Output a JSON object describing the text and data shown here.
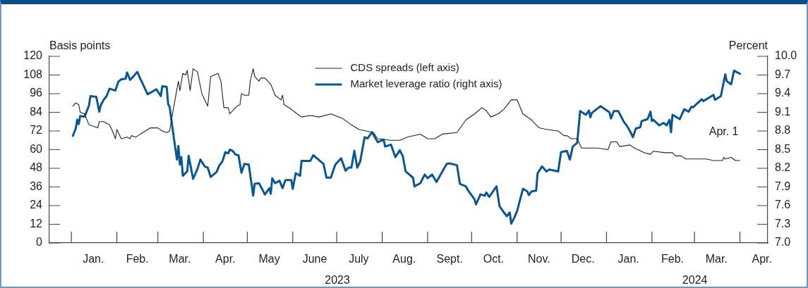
{
  "chart_data": {
    "type": "line",
    "ylabel": "Basis points",
    "y2label": "Percent",
    "xlim": [
      "2022-12-17",
      "2024-04-20"
    ],
    "xticks": [
      {
        "value": "2023-01-01",
        "label": null
      },
      {
        "value": "2023-01-16",
        "label": "Jan."
      },
      {
        "value": "2023-02-01",
        "label": null
      },
      {
        "value": "2023-02-15",
        "label": "Feb."
      },
      {
        "value": "2023-03-01",
        "label": null
      },
      {
        "value": "2023-03-16",
        "label": "Mar."
      },
      {
        "value": "2023-04-01",
        "label": null
      },
      {
        "value": "2023-04-16",
        "label": "Apr."
      },
      {
        "value": "2023-05-01",
        "label": null
      },
      {
        "value": "2023-05-16",
        "label": "May"
      },
      {
        "value": "2023-06-01",
        "label": null
      },
      {
        "value": "2023-06-16",
        "label": "June"
      },
      {
        "value": "2023-07-01",
        "label": null
      },
      {
        "value": "2023-07-16",
        "label": "July"
      },
      {
        "value": "2023-08-01",
        "label": null
      },
      {
        "value": "2023-08-16",
        "label": "Aug."
      },
      {
        "value": "2023-09-01",
        "label": null
      },
      {
        "value": "2023-09-16",
        "label": "Sept."
      },
      {
        "value": "2023-10-01",
        "label": null
      },
      {
        "value": "2023-10-16",
        "label": "Oct."
      },
      {
        "value": "2023-11-01",
        "label": null
      },
      {
        "value": "2023-11-16",
        "label": "Nov."
      },
      {
        "value": "2023-12-01",
        "label": null
      },
      {
        "value": "2023-12-16",
        "label": "Dec."
      },
      {
        "value": "2024-01-01",
        "label": null
      },
      {
        "value": "2024-01-16",
        "label": "Jan."
      },
      {
        "value": "2024-02-01",
        "label": null
      },
      {
        "value": "2024-02-15",
        "label": "Feb."
      },
      {
        "value": "2024-03-01",
        "label": null
      },
      {
        "value": "2024-03-16",
        "label": "Mar."
      },
      {
        "value": "2024-04-01",
        "label": null
      },
      {
        "value": "2024-04-16",
        "label": "Apr."
      }
    ],
    "ylim": [
      0,
      120
    ],
    "yticks": [
      0,
      12,
      24,
      36,
      48,
      60,
      72,
      84,
      96,
      108,
      120
    ],
    "y2lim": [
      7,
      10
    ],
    "y2ticks": [
      {
        "value": 7,
        "label": "7.0"
      },
      7.3,
      7.6,
      7.9,
      8.2,
      8.5,
      8.8,
      9.1,
      9.4,
      9.7,
      {
        "value": 10,
        "label": "10.0"
      }
    ],
    "legend": "top",
    "annotations": [
      "2023",
      "2024",
      "Apr. 1"
    ],
    "series": [
      {
        "name": "CDS spreads (left axis)",
        "color": "#222222",
        "x": [
          "2023-01-02",
          "2023-01-04",
          "2023-01-06",
          "2023-01-07",
          "2023-01-10",
          "2023-01-13",
          "2023-01-19",
          "2023-01-20",
          "2023-01-23",
          "2023-01-27",
          "2023-01-29",
          "2023-01-31",
          "2023-02-01",
          "2023-02-04",
          "2023-02-08",
          "2023-02-10",
          "2023-02-11",
          "2023-02-14",
          "2023-02-17",
          "2023-02-24",
          "2023-03-01",
          "2023-03-04",
          "2023-03-07",
          "2023-03-09",
          "2023-03-11",
          "2023-03-14",
          "2023-03-15",
          "2023-03-16",
          "2023-03-18",
          "2023-03-20",
          "2023-03-21",
          "2023-03-23",
          "2023-03-25",
          "2023-03-28",
          "2023-03-31",
          "2023-04-04",
          "2023-04-06",
          "2023-04-11",
          "2023-04-13",
          "2023-04-15",
          "2023-04-18",
          "2023-04-19",
          "2023-04-24",
          "2023-04-26",
          "2023-04-27",
          "2023-04-29",
          "2023-05-02",
          "2023-05-03",
          "2023-05-05",
          "2023-05-06",
          "2023-05-09",
          "2023-05-10",
          "2023-05-13",
          "2023-05-17",
          "2023-05-20",
          "2023-05-24",
          "2023-05-25",
          "2023-05-26",
          "2023-05-31",
          "2023-06-04",
          "2023-06-07",
          "2023-06-13",
          "2023-06-19",
          "2023-06-27",
          "2023-07-05",
          "2023-07-11",
          "2023-07-16",
          "2023-07-26",
          "2023-07-29",
          "2023-08-07",
          "2023-08-13",
          "2023-08-18",
          "2023-08-27",
          "2023-09-01",
          "2023-09-06",
          "2023-09-11",
          "2023-09-21",
          "2023-09-27",
          "2023-10-03",
          "2023-10-08",
          "2023-10-11",
          "2023-10-14",
          "2023-10-19",
          "2023-10-23",
          "2023-10-28",
          "2023-11-01",
          "2023-11-05",
          "2023-11-11",
          "2023-11-16",
          "2023-11-21",
          "2023-11-29",
          "2023-12-03",
          "2023-12-05",
          "2023-12-08",
          "2023-12-12",
          "2023-12-15",
          "2023-12-21",
          "2023-12-26",
          "2024-01-02",
          "2024-01-04",
          "2024-01-08",
          "2024-01-10",
          "2024-01-17",
          "2024-01-20",
          "2024-01-27",
          "2024-01-31",
          "2024-02-02",
          "2024-02-10",
          "2024-02-15",
          "2024-02-17",
          "2024-02-21",
          "2024-02-24",
          "2024-02-29",
          "2024-03-09",
          "2024-03-14",
          "2024-03-20",
          "2024-03-21",
          "2024-03-22",
          "2024-03-26",
          "2024-03-29",
          "2024-04-01"
        ],
        "values": [
          88,
          90,
          89,
          84,
          83,
          76,
          74,
          78,
          78,
          76,
          72,
          67,
          73,
          67,
          68,
          67,
          69,
          68,
          70,
          74,
          74,
          72,
          71,
          72,
          83,
          99,
          104,
          98,
          109,
          108,
          111,
          98,
          112,
          110,
          96,
          88,
          107,
          109,
          104,
          87,
          87,
          83,
          88,
          89,
          96,
          95,
          95,
          104,
          112,
          107,
          104,
          106,
          106,
          102,
          95,
          92,
          95,
          89,
          86,
          83,
          81,
          82,
          81,
          83,
          80,
          76,
          73,
          71,
          67,
          66,
          66,
          68,
          70,
          67,
          67,
          70,
          71,
          79,
          83,
          87,
          85,
          81,
          83,
          86,
          92,
          92,
          83,
          79,
          74,
          73,
          72,
          69,
          69,
          67,
          67,
          61,
          61,
          61,
          60,
          65,
          65,
          62,
          63,
          61,
          58,
          57,
          59,
          58,
          58,
          56,
          56,
          54,
          54,
          54,
          53,
          53,
          55,
          54,
          55,
          53,
          53
        ]
      },
      {
        "name": "Market leverage ratio (right axis)",
        "color": "#0b5690",
        "axis": "y2",
        "x": [
          "2023-01-02",
          "2023-01-04",
          "2023-01-05",
          "2023-01-06",
          "2023-01-07",
          "2023-01-10",
          "2023-01-13",
          "2023-01-14",
          "2023-01-18",
          "2023-01-20",
          "2023-01-21",
          "2023-01-23",
          "2023-01-25",
          "2023-01-27",
          "2023-01-31",
          "2023-02-02",
          "2023-02-04",
          "2023-02-07",
          "2023-02-08",
          "2023-02-10",
          "2023-02-12",
          "2023-02-15",
          "2023-02-17",
          "2023-02-18",
          "2023-02-22",
          "2023-02-28",
          "2023-03-03",
          "2023-03-04",
          "2023-03-07",
          "2023-03-08",
          "2023-03-09",
          "2023-03-11",
          "2023-03-14",
          "2023-03-15",
          "2023-03-16",
          "2023-03-17",
          "2023-03-18",
          "2023-03-21",
          "2023-03-22",
          "2023-03-25",
          "2023-03-28",
          "2023-03-30",
          "2023-04-02",
          "2023-04-04",
          "2023-04-06",
          "2023-04-10",
          "2023-04-12",
          "2023-04-14",
          "2023-04-16",
          "2023-04-18",
          "2023-04-19",
          "2023-04-21",
          "2023-04-23",
          "2023-04-25",
          "2023-04-27",
          "2023-04-29",
          "2023-05-02",
          "2023-05-05",
          "2023-05-06",
          "2023-05-09",
          "2023-05-13",
          "2023-05-16",
          "2023-05-17",
          "2023-05-18",
          "2023-05-20",
          "2023-05-23",
          "2023-05-25",
          "2023-05-27",
          "2023-05-31",
          "2023-06-01",
          "2023-06-03",
          "2023-06-06",
          "2023-06-07",
          "2023-06-13",
          "2023-06-15",
          "2023-06-22",
          "2023-06-24",
          "2023-06-27",
          "2023-06-28",
          "2023-06-30",
          "2023-07-04",
          "2023-07-07",
          "2023-07-09",
          "2023-07-11",
          "2023-07-13",
          "2023-07-15",
          "2023-07-17",
          "2023-07-20",
          "2023-07-22",
          "2023-07-25",
          "2023-07-29",
          "2023-08-02",
          "2023-08-03",
          "2023-08-07",
          "2023-08-10",
          "2023-08-13",
          "2023-08-15",
          "2023-08-17",
          "2023-08-22",
          "2023-08-23",
          "2023-08-27",
          "2023-08-30",
          "2023-09-01",
          "2023-09-04",
          "2023-09-07",
          "2023-09-14",
          "2023-09-16",
          "2023-09-21",
          "2023-09-23",
          "2023-09-27",
          "2023-09-29",
          "2023-10-03",
          "2023-10-04",
          "2023-10-07",
          "2023-10-10",
          "2023-10-11",
          "2023-10-13",
          "2023-10-18",
          "2023-10-20",
          "2023-10-23",
          "2023-10-25",
          "2023-10-27",
          "2023-10-28",
          "2023-10-30",
          "2023-11-01",
          "2023-11-05",
          "2023-11-08",
          "2023-11-09",
          "2023-11-11",
          "2023-11-14",
          "2023-11-15",
          "2023-11-18",
          "2023-11-21",
          "2023-11-23",
          "2023-11-29",
          "2023-12-01",
          "2023-12-05",
          "2023-12-07",
          "2023-12-09",
          "2023-12-12",
          "2023-12-14",
          "2023-12-18",
          "2023-12-20",
          "2023-12-21",
          "2023-12-22",
          "2023-12-28",
          "2024-01-03",
          "2024-01-04",
          "2024-01-06",
          "2024-01-09",
          "2024-01-13",
          "2024-01-15",
          "2024-01-17",
          "2024-01-19",
          "2024-01-21",
          "2024-01-24",
          "2024-01-25",
          "2024-01-29",
          "2024-01-31",
          "2024-02-01",
          "2024-02-02",
          "2024-02-06",
          "2024-02-09",
          "2024-02-11",
          "2024-02-13",
          "2024-02-14",
          "2024-02-15",
          "2024-02-20",
          "2024-02-23",
          "2024-02-26",
          "2024-02-28",
          "2024-02-29",
          "2024-03-06",
          "2024-03-07",
          "2024-03-14",
          "2024-03-15",
          "2024-03-19",
          "2024-03-22",
          "2024-03-23",
          "2024-03-26",
          "2024-03-28",
          "2024-04-01"
        ],
        "values": [
          8.72,
          8.84,
          8.98,
          8.91,
          9.04,
          9.03,
          9.21,
          9.36,
          9.35,
          9.11,
          9.21,
          9.3,
          9.36,
          9.48,
          9.45,
          9.59,
          9.63,
          9.64,
          9.74,
          9.62,
          9.67,
          9.75,
          9.64,
          9.59,
          9.39,
          9.47,
          9.36,
          9.52,
          9.51,
          9.23,
          9.19,
          8.84,
          8.34,
          8.56,
          8.26,
          8.38,
          8.08,
          8.15,
          8.4,
          8.03,
          8.19,
          8.34,
          8.23,
          8.21,
          8.06,
          8.14,
          8.25,
          8.31,
          8.46,
          8.44,
          8.5,
          8.48,
          8.42,
          8.41,
          8.13,
          8.27,
          8.26,
          7.76,
          7.95,
          7.96,
          7.78,
          7.88,
          7.79,
          8.04,
          7.96,
          8.0,
          7.88,
          8.01,
          8.01,
          7.87,
          8.12,
          8.08,
          8.32,
          8.32,
          8.41,
          8.27,
          8.05,
          8.05,
          8.12,
          8.26,
          8.36,
          8.16,
          8.21,
          8.21,
          8.48,
          8.21,
          8.31,
          8.7,
          8.68,
          8.78,
          8.62,
          8.66,
          8.55,
          8.58,
          8.38,
          8.49,
          8.4,
          8.15,
          8.05,
          7.91,
          7.96,
          8.1,
          8.04,
          8.1,
          7.98,
          8.27,
          8.28,
          8.25,
          7.95,
          7.91,
          7.83,
          7.7,
          7.62,
          7.78,
          7.76,
          7.81,
          7.74,
          7.91,
          7.59,
          7.49,
          7.43,
          7.49,
          7.31,
          7.4,
          7.51,
          7.87,
          7.83,
          7.77,
          7.83,
          7.84,
          8.12,
          8.23,
          8.15,
          8.18,
          8.15,
          8.46,
          8.48,
          8.34,
          8.55,
          8.61,
          9.12,
          9.06,
          9.13,
          9.02,
          9.09,
          9.2,
          9.1,
          9.0,
          9.12,
          9.12,
          8.94,
          8.88,
          8.8,
          8.7,
          8.84,
          8.86,
          8.96,
          8.99,
          9.11,
          8.96,
          8.98,
          8.89,
          8.93,
          8.89,
          8.98,
          8.78,
          9.06,
          8.99,
          9.15,
          9.11,
          9.19,
          9.18,
          9.31,
          9.28,
          9.38,
          9.3,
          9.36,
          9.71,
          9.6,
          9.55,
          9.77,
          9.72
        ]
      }
    ]
  }
}
